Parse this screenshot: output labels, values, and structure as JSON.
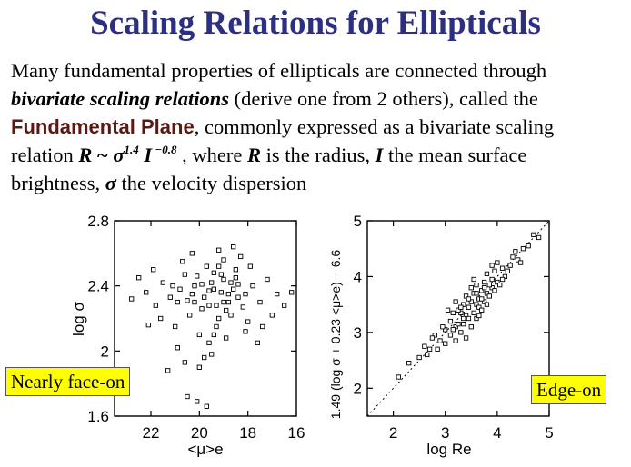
{
  "slide": {
    "title": "Scaling Relations for Ellipticals",
    "line1": "Many fundamental properties of ellipticals are connected through",
    "line2_bold": "bivariate scaling relations",
    "line2_rest": " (derive one from 2 others), called the",
    "line3_fp": "Fundamental Plane",
    "line3_rest": ", commonly expressed as a bivariate scaling",
    "line4_a": "relation ",
    "line4_R": "R",
    "line4_tilde": " ~ ",
    "line4_sigma": "σ",
    "line4_exp1": "1.4",
    "line4_I": " I",
    "line4_exp2": " −0.8",
    "line4_b": " , where ",
    "line4_R2": "R",
    "line4_c": " is the radius, ",
    "line4_I2": "I",
    "line4_d": " the mean surface",
    "line5_a": "brightness, ",
    "line5_sigma": "σ",
    "line5_b": " the velocity dispersion",
    "label_left": "Nearly face-on",
    "label_right": "Edge-on",
    "colors": {
      "title": "#2c2f82",
      "fundamental_plane": "#5a1a12",
      "label_bg": "#ffff00"
    }
  },
  "chart_data": [
    {
      "type": "scatter",
      "xlabel": "<μ>e",
      "ylabel": "log σ",
      "xlim": [
        16,
        23.5
      ],
      "xreversed": true,
      "ylim": [
        1.6,
        2.8
      ],
      "xticks": [
        22,
        20,
        18,
        16
      ],
      "xticklabels": [
        "22",
        "20",
        "18",
        "16"
      ],
      "yticks": [
        1.6,
        2.0,
        2.4,
        2.8
      ],
      "yticklabels": [
        "1.6",
        "2",
        "2.4",
        "2.8"
      ],
      "marker": "open-square",
      "points": [
        [
          19.1,
          2.36
        ],
        [
          19.5,
          2.42
        ],
        [
          18.8,
          2.3
        ],
        [
          19.8,
          2.33
        ],
        [
          19.3,
          2.28
        ],
        [
          18.6,
          2.38
        ],
        [
          20.2,
          2.4
        ],
        [
          19.0,
          2.44
        ],
        [
          18.9,
          2.25
        ],
        [
          19.6,
          2.37
        ],
        [
          20.5,
          2.31
        ],
        [
          18.4,
          2.33
        ],
        [
          19.4,
          2.48
        ],
        [
          19.9,
          2.26
        ],
        [
          18.7,
          2.42
        ],
        [
          20.8,
          2.38
        ],
        [
          19.2,
          2.2
        ],
        [
          20.1,
          2.46
        ],
        [
          18.2,
          2.27
        ],
        [
          19.7,
          2.52
        ],
        [
          21.2,
          2.33
        ],
        [
          17.8,
          2.4
        ],
        [
          19.3,
          2.15
        ],
        [
          20.4,
          2.22
        ],
        [
          18.5,
          2.5
        ],
        [
          21.5,
          2.42
        ],
        [
          17.5,
          2.3
        ],
        [
          20.0,
          2.1
        ],
        [
          19.0,
          2.56
        ],
        [
          18.0,
          2.18
        ],
        [
          21.8,
          2.28
        ],
        [
          17.2,
          2.44
        ],
        [
          20.7,
          2.55
        ],
        [
          19.6,
          2.05
        ],
        [
          18.3,
          2.58
        ],
        [
          22.2,
          2.36
        ],
        [
          16.8,
          2.35
        ],
        [
          21.0,
          2.15
        ],
        [
          20.3,
          2.6
        ],
        [
          18.9,
          2.08
        ],
        [
          22.5,
          2.45
        ],
        [
          17.0,
          2.22
        ],
        [
          20.9,
          2.02
        ],
        [
          19.5,
          1.98
        ],
        [
          21.6,
          2.2
        ],
        [
          18.1,
          2.12
        ],
        [
          19.8,
          1.96
        ],
        [
          20.6,
          1.93
        ],
        [
          21.3,
          1.88
        ],
        [
          20.0,
          1.9
        ],
        [
          18.6,
          2.64
        ],
        [
          19.2,
          2.62
        ],
        [
          17.9,
          2.52
        ],
        [
          22.8,
          2.32
        ],
        [
          16.5,
          2.28
        ],
        [
          21.9,
          2.5
        ],
        [
          17.4,
          2.15
        ],
        [
          20.5,
          1.72
        ],
        [
          20.1,
          1.69
        ],
        [
          19.7,
          1.66
        ],
        [
          16.2,
          2.36
        ],
        [
          22.1,
          2.16
        ],
        [
          17.6,
          2.05
        ],
        [
          19.4,
          2.1
        ],
        [
          20.2,
          2.3
        ],
        [
          18.8,
          2.35
        ],
        [
          19.9,
          2.41
        ],
        [
          19.1,
          2.47
        ],
        [
          18.4,
          2.41
        ],
        [
          20.6,
          2.47
        ],
        [
          19.6,
          2.28
        ],
        [
          18.7,
          2.22
        ],
        [
          20.3,
          2.35
        ],
        [
          19.0,
          2.3
        ],
        [
          19.4,
          2.38
        ],
        [
          18.5,
          2.45
        ],
        [
          20.9,
          2.3
        ],
        [
          19.2,
          2.52
        ],
        [
          18.1,
          2.35
        ],
        [
          21.1,
          2.4
        ]
      ]
    },
    {
      "type": "scatter",
      "xlabel": "log Re",
      "ylabel": "1.49 (log σ + 0.23 <μ>e) − 6.6",
      "xlim": [
        1.5,
        5
      ],
      "ylim": [
        1.5,
        5
      ],
      "xticks": [
        2,
        3,
        4,
        5
      ],
      "xticklabels": [
        "2",
        "3",
        "4",
        "5"
      ],
      "yticks": [
        2,
        3,
        4,
        5
      ],
      "yticklabels": [
        "2",
        "3",
        "4",
        "5"
      ],
      "diagonal": "y = x",
      "marker": "open-square",
      "points": [
        [
          3.0,
          3.05
        ],
        [
          3.1,
          3.2
        ],
        [
          3.2,
          3.1
        ],
        [
          3.3,
          3.35
        ],
        [
          3.4,
          3.3
        ],
        [
          3.5,
          3.55
        ],
        [
          3.6,
          3.5
        ],
        [
          3.7,
          3.75
        ],
        [
          3.8,
          3.7
        ],
        [
          3.9,
          3.95
        ],
        [
          4.0,
          3.9
        ],
        [
          4.1,
          4.15
        ],
        [
          4.2,
          4.1
        ],
        [
          4.3,
          4.35
        ],
        [
          4.4,
          4.3
        ],
        [
          3.15,
          3.35
        ],
        [
          3.25,
          3.15
        ],
        [
          3.35,
          3.5
        ],
        [
          3.45,
          3.25
        ],
        [
          3.55,
          3.7
        ],
        [
          3.65,
          3.45
        ],
        [
          3.75,
          3.9
        ],
        [
          3.85,
          3.65
        ],
        [
          3.95,
          4.1
        ],
        [
          4.05,
          3.85
        ],
        [
          2.9,
          2.85
        ],
        [
          2.8,
          2.95
        ],
        [
          2.7,
          2.7
        ],
        [
          2.6,
          2.75
        ],
        [
          2.5,
          2.55
        ],
        [
          2.3,
          2.45
        ],
        [
          2.1,
          2.2
        ],
        [
          4.5,
          4.5
        ],
        [
          4.6,
          4.55
        ],
        [
          4.7,
          4.75
        ],
        [
          4.8,
          4.7
        ],
        [
          3.3,
          3.0
        ],
        [
          3.5,
          3.8
        ],
        [
          3.6,
          3.25
        ],
        [
          3.8,
          4.05
        ],
        [
          3.2,
          3.55
        ],
        [
          3.4,
          3.65
        ],
        [
          3.7,
          3.4
        ],
        [
          3.9,
          3.8
        ],
        [
          4.0,
          4.25
        ],
        [
          3.05,
          3.4
        ],
        [
          3.45,
          3.45
        ],
        [
          3.55,
          3.35
        ],
        [
          3.65,
          3.6
        ],
        [
          3.75,
          3.55
        ],
        [
          3.35,
          3.25
        ],
        [
          3.25,
          3.4
        ],
        [
          3.15,
          3.05
        ],
        [
          3.85,
          3.85
        ],
        [
          3.95,
          3.75
        ],
        [
          4.15,
          4.0
        ],
        [
          4.25,
          4.2
        ],
        [
          2.95,
          3.1
        ],
        [
          2.85,
          2.7
        ],
        [
          3.0,
          2.8
        ],
        [
          3.1,
          2.95
        ],
        [
          3.5,
          3.1
        ],
        [
          3.6,
          3.85
        ],
        [
          3.7,
          3.6
        ],
        [
          3.8,
          3.5
        ],
        [
          4.1,
          3.95
        ],
        [
          4.35,
          4.45
        ],
        [
          4.45,
          4.25
        ],
        [
          3.4,
          2.9
        ],
        [
          3.2,
          2.85
        ],
        [
          2.75,
          2.9
        ],
        [
          2.65,
          2.6
        ],
        [
          3.55,
          3.95
        ],
        [
          3.3,
          3.45
        ],
        [
          3.45,
          3.6
        ],
        [
          3.6,
          3.7
        ],
        [
          3.75,
          3.8
        ],
        [
          3.65,
          3.3
        ],
        [
          3.35,
          3.15
        ],
        [
          3.9,
          4.2
        ]
      ]
    }
  ]
}
